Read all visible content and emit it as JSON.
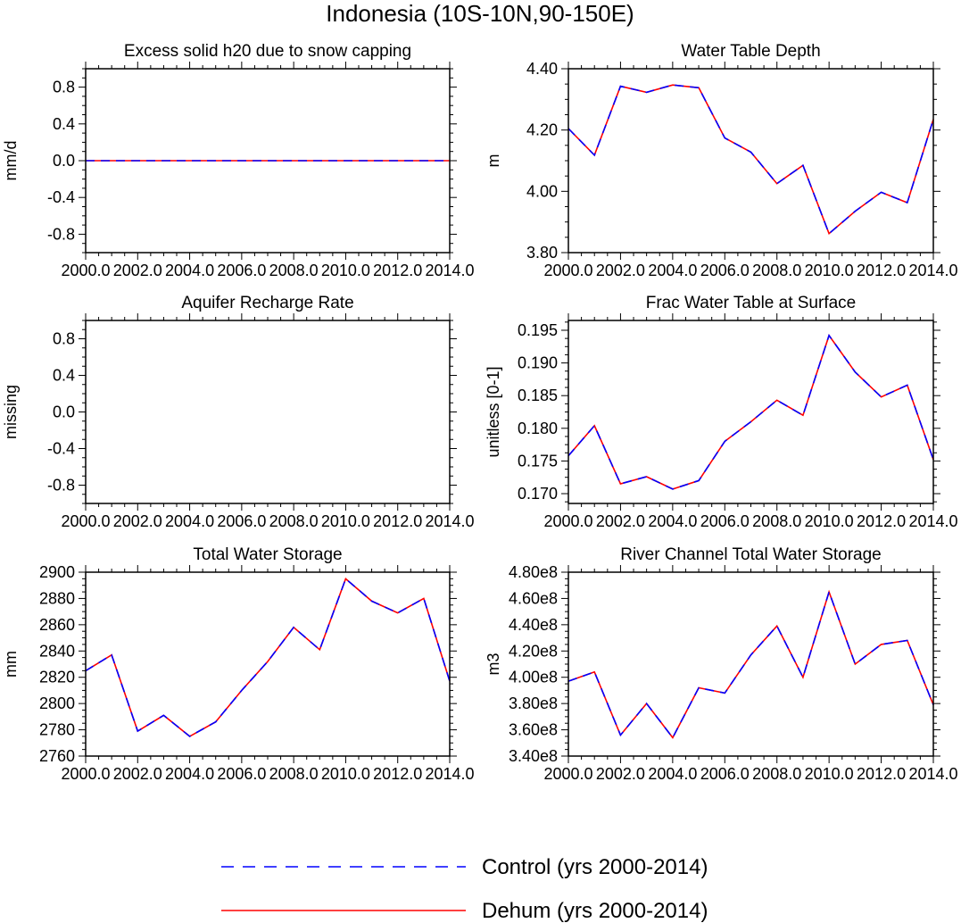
{
  "title": "Indonesia (10S-10N,90-150E)",
  "colors": {
    "control": "#0000ff",
    "dehum": "#ff0000",
    "axis": "#000000"
  },
  "legend": [
    {
      "label": "Control (yrs 2000-2014)",
      "style": "dashed",
      "color": "#0000ff"
    },
    {
      "label": "Dehum (yrs 2000-2014)",
      "style": "solid",
      "color": "#ff0000"
    }
  ],
  "chart_data": [
    {
      "type": "line",
      "title": "Excess solid h20 due to snow capping",
      "ylabel": "mm/d",
      "xlim": [
        2000,
        2014
      ],
      "ylim": [
        -1.0,
        1.0
      ],
      "yticks": [
        -0.8,
        -0.4,
        0.0,
        0.4,
        0.8
      ],
      "ytick_labels": [
        "-0.8",
        "-0.4",
        "0.0",
        "0.4",
        "0.8"
      ],
      "xticks": [
        2000,
        2002,
        2004,
        2006,
        2008,
        2010,
        2012,
        2014
      ],
      "xtick_labels": [
        "2000.0",
        "2002.0",
        "2004.0",
        "2006.0",
        "2008.0",
        "2010.0",
        "2012.0",
        "2014.0"
      ],
      "x": [
        2000,
        2001,
        2002,
        2003,
        2004,
        2005,
        2006,
        2007,
        2008,
        2009,
        2010,
        2011,
        2012,
        2013,
        2014
      ],
      "series": [
        {
          "name": "Control (yrs 2000-2014)",
          "values": [
            0,
            0,
            0,
            0,
            0,
            0,
            0,
            0,
            0,
            0,
            0,
            0,
            0,
            0,
            0
          ]
        },
        {
          "name": "Dehum (yrs 2000-2014)",
          "values": [
            0,
            0,
            0,
            0,
            0,
            0,
            0,
            0,
            0,
            0,
            0,
            0,
            0,
            0,
            0
          ]
        }
      ]
    },
    {
      "type": "line",
      "title": "Water Table Depth",
      "ylabel": "m",
      "xlim": [
        2000,
        2014
      ],
      "ylim": [
        3.8,
        4.4
      ],
      "yticks": [
        3.8,
        4.0,
        4.2,
        4.4
      ],
      "ytick_labels": [
        "3.80",
        "4.00",
        "4.20",
        "4.40"
      ],
      "xticks": [
        2000,
        2002,
        2004,
        2006,
        2008,
        2010,
        2012,
        2014
      ],
      "xtick_labels": [
        "2000.0",
        "2002.0",
        "2004.0",
        "2006.0",
        "2008.0",
        "2010.0",
        "2012.0",
        "2014.0"
      ],
      "x": [
        2000,
        2001,
        2002,
        2003,
        2004,
        2005,
        2006,
        2007,
        2008,
        2009,
        2010,
        2011,
        2012,
        2013,
        2014
      ],
      "series": [
        {
          "name": "Control (yrs 2000-2014)",
          "values": [
            4.205,
            4.118,
            4.343,
            4.323,
            4.347,
            4.338,
            4.174,
            4.128,
            4.025,
            4.085,
            3.862,
            3.935,
            3.997,
            3.963,
            4.235
          ]
        },
        {
          "name": "Dehum (yrs 2000-2014)",
          "values": [
            4.205,
            4.118,
            4.343,
            4.323,
            4.347,
            4.338,
            4.174,
            4.128,
            4.025,
            4.085,
            3.862,
            3.935,
            3.997,
            3.963,
            4.235
          ]
        }
      ]
    },
    {
      "type": "line",
      "title": "Aquifer Recharge Rate",
      "ylabel": "missing",
      "xlim": [
        2000,
        2014
      ],
      "ylim": [
        -1.0,
        1.0
      ],
      "yticks": [
        -0.8,
        -0.4,
        0.0,
        0.4,
        0.8
      ],
      "ytick_labels": [
        "-0.8",
        "-0.4",
        "0.0",
        "0.4",
        "0.8"
      ],
      "xticks": [
        2000,
        2002,
        2004,
        2006,
        2008,
        2010,
        2012,
        2014
      ],
      "xtick_labels": [
        "2000.0",
        "2002.0",
        "2004.0",
        "2006.0",
        "2008.0",
        "2010.0",
        "2012.0",
        "2014.0"
      ],
      "x": [],
      "series": []
    },
    {
      "type": "line",
      "title": "Frac Water Table at Surface",
      "ylabel": "unitless [0-1]",
      "xlim": [
        2000,
        2014
      ],
      "ylim": [
        0.1685,
        0.1965
      ],
      "yticks": [
        0.17,
        0.175,
        0.18,
        0.185,
        0.19,
        0.195
      ],
      "ytick_labels": [
        "0.170",
        "0.175",
        "0.180",
        "0.185",
        "0.190",
        "0.195"
      ],
      "xticks": [
        2000,
        2002,
        2004,
        2006,
        2008,
        2010,
        2012,
        2014
      ],
      "xtick_labels": [
        "2000.0",
        "2002.0",
        "2004.0",
        "2006.0",
        "2008.0",
        "2010.0",
        "2012.0",
        "2014.0"
      ],
      "x": [
        2000,
        2001,
        2002,
        2003,
        2004,
        2005,
        2006,
        2007,
        2008,
        2009,
        2010,
        2011,
        2012,
        2013,
        2014
      ],
      "series": [
        {
          "name": "Control (yrs 2000-2014)",
          "values": [
            0.1758,
            0.1804,
            0.1715,
            0.1726,
            0.1707,
            0.172,
            0.178,
            0.181,
            0.1843,
            0.182,
            0.1942,
            0.1886,
            0.1848,
            0.1866,
            0.1752
          ]
        },
        {
          "name": "Dehum (yrs 2000-2014)",
          "values": [
            0.1758,
            0.1804,
            0.1715,
            0.1726,
            0.1707,
            0.172,
            0.178,
            0.181,
            0.1843,
            0.182,
            0.1942,
            0.1886,
            0.1848,
            0.1866,
            0.1752
          ]
        }
      ]
    },
    {
      "type": "line",
      "title": "Total Water Storage",
      "ylabel": "mm",
      "xlim": [
        2000,
        2014
      ],
      "ylim": [
        2760,
        2900
      ],
      "yticks": [
        2760,
        2780,
        2800,
        2820,
        2840,
        2860,
        2880,
        2900
      ],
      "ytick_labels": [
        "2760",
        "2780",
        "2800",
        "2820",
        "2840",
        "2860",
        "2880",
        "2900"
      ],
      "xticks": [
        2000,
        2002,
        2004,
        2006,
        2008,
        2010,
        2012,
        2014
      ],
      "xtick_labels": [
        "2000.0",
        "2002.0",
        "2004.0",
        "2006.0",
        "2008.0",
        "2010.0",
        "2012.0",
        "2014.0"
      ],
      "x": [
        2000,
        2001,
        2002,
        2003,
        2004,
        2005,
        2006,
        2007,
        2008,
        2009,
        2010,
        2011,
        2012,
        2013,
        2014
      ],
      "series": [
        {
          "name": "Control (yrs 2000-2014)",
          "values": [
            2825,
            2837,
            2779,
            2791,
            2775,
            2786,
            2810,
            2832,
            2858,
            2841,
            2895,
            2878,
            2869,
            2880,
            2817
          ]
        },
        {
          "name": "Dehum (yrs 2000-2014)",
          "values": [
            2825,
            2837,
            2779,
            2791,
            2775,
            2786,
            2810,
            2832,
            2858,
            2841,
            2895,
            2878,
            2869,
            2880,
            2817
          ]
        }
      ]
    },
    {
      "type": "line",
      "title": "River Channel Total Water Storage",
      "ylabel": "m3",
      "xlim": [
        2000,
        2014
      ],
      "ylim": [
        340000000,
        480000000
      ],
      "yticks": [
        340000000,
        360000000,
        380000000,
        400000000,
        420000000,
        440000000,
        460000000,
        480000000
      ],
      "ytick_labels": [
        "3.40e8",
        "3.60e8",
        "3.80e8",
        "4.00e8",
        "4.20e8",
        "4.40e8",
        "4.60e8",
        "4.80e8"
      ],
      "xticks": [
        2000,
        2002,
        2004,
        2006,
        2008,
        2010,
        2012,
        2014
      ],
      "xtick_labels": [
        "2000.0",
        "2002.0",
        "2004.0",
        "2006.0",
        "2008.0",
        "2010.0",
        "2012.0",
        "2014.0"
      ],
      "x": [
        2000,
        2001,
        2002,
        2003,
        2004,
        2005,
        2006,
        2007,
        2008,
        2009,
        2010,
        2011,
        2012,
        2013,
        2014
      ],
      "series": [
        {
          "name": "Control (yrs 2000-2014)",
          "values": [
            397000000,
            404000000,
            356000000,
            380000000,
            354000000,
            392000000,
            388000000,
            417000000,
            439000000,
            400000000,
            465000000,
            410000000,
            425000000,
            428000000,
            379000000
          ]
        },
        {
          "name": "Dehum (yrs 2000-2014)",
          "values": [
            397000000,
            404000000,
            356000000,
            380000000,
            354000000,
            392000000,
            388000000,
            417000000,
            439000000,
            400000000,
            465000000,
            410000000,
            425000000,
            428000000,
            379000000
          ]
        }
      ]
    }
  ]
}
